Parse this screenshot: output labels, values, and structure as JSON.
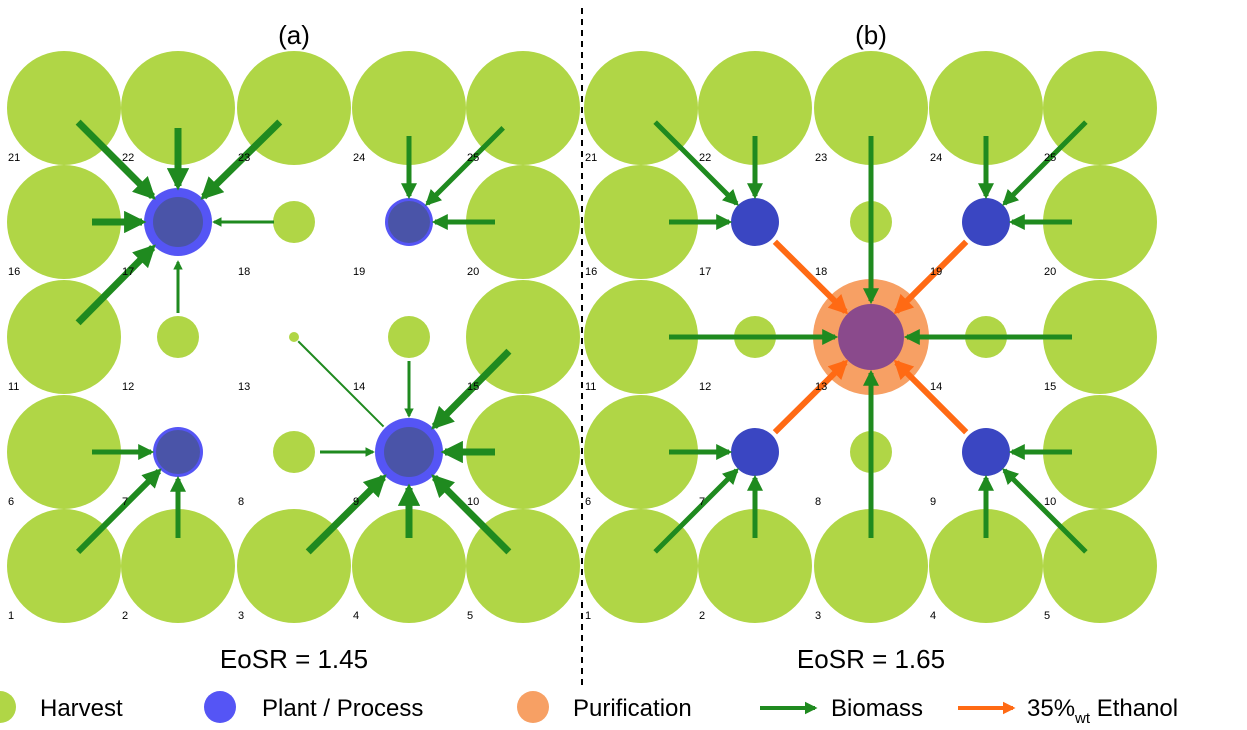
{
  "panels": [
    {
      "label": "(a)",
      "eosr_text": "EoSR = 1.45",
      "node_numbers": [
        "1",
        "2",
        "3",
        "4",
        "5",
        "6",
        "7",
        "8",
        "9",
        "10",
        "11",
        "12",
        "13",
        "14",
        "15",
        "16",
        "17",
        "18",
        "19",
        "20",
        "21",
        "22",
        "23",
        "24",
        "25"
      ]
    },
    {
      "label": "(b)",
      "eosr_text": "EoSR = 1.65",
      "node_numbers": [
        "1",
        "2",
        "3",
        "4",
        "5",
        "6",
        "7",
        "8",
        "9",
        "10",
        "11",
        "12",
        "13",
        "14",
        "15",
        "16",
        "17",
        "18",
        "19",
        "20",
        "21",
        "22",
        "23",
        "24",
        "25"
      ]
    }
  ],
  "legend": {
    "harvest": "Harvest",
    "plant": "Plant / Process",
    "purification": "Purification",
    "biomass": "Biomass",
    "ethanol_main": "35%",
    "ethanol_sub": "wt",
    "ethanol_tail": " Ethanol"
  },
  "colors": {
    "harvest": "#b0d646",
    "plant": "#5555f5",
    "plant_core": "#4a54a8",
    "plant_b": "#3a46c2",
    "purification": "#f7a064",
    "purification_core": "#8a4a8c",
    "biomass_arrow": "#1f8a1f",
    "ethanol_arrow": "#ff6a14"
  }
}
